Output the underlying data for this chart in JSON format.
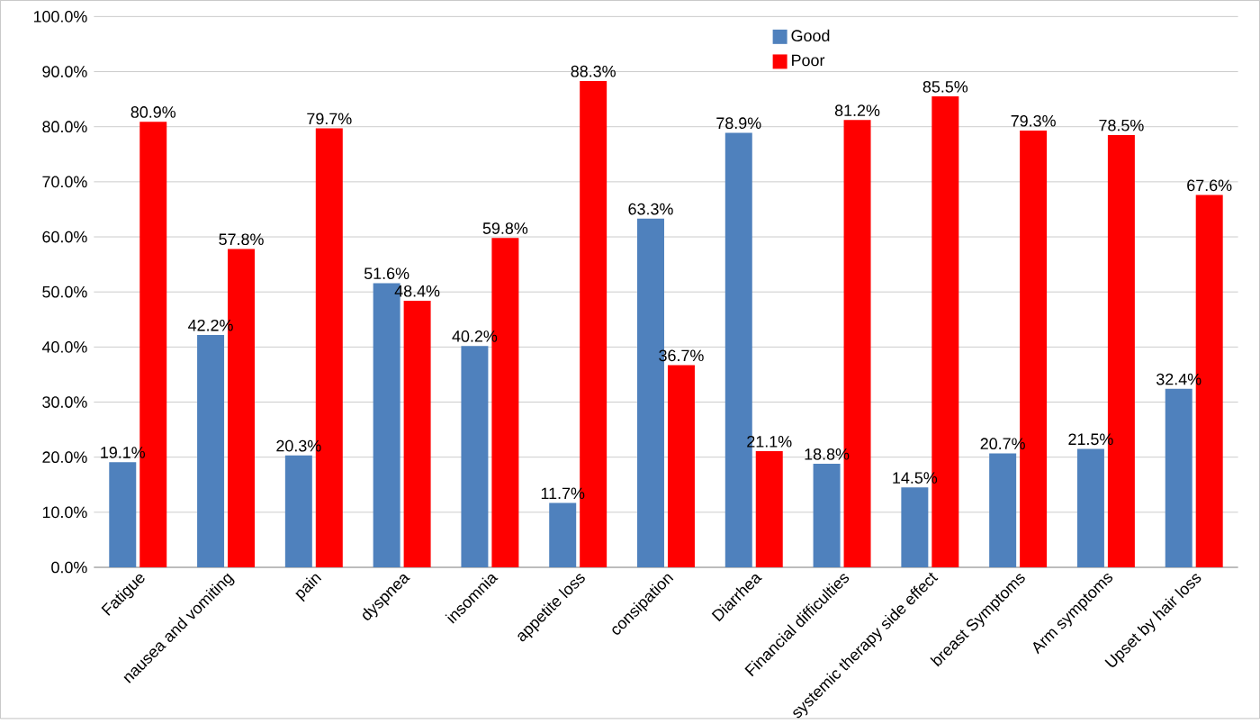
{
  "chart_data": {
    "type": "bar",
    "categories": [
      "Fatigue",
      "nausea and vomiting",
      "pain",
      "dyspnea",
      "insomnia",
      "appetite loss",
      "consipation",
      "Diarrhea",
      "Financial difficulties",
      "systemic therapy side effect",
      "breast Symptoms",
      "Arm symptoms",
      "Upset by hair loss"
    ],
    "series": [
      {
        "name": "Good",
        "color": "#4f81bd",
        "values": [
          19.1,
          42.2,
          20.3,
          51.6,
          40.2,
          11.7,
          63.3,
          78.9,
          18.8,
          14.5,
          20.7,
          21.5,
          32.4
        ],
        "value_labels": [
          "19.1%",
          "42.2%",
          "20.3%",
          "51.6%",
          "40.2%",
          "11.7%",
          "63.3%",
          "78.9%",
          "18.8%",
          "14.5%",
          "20.7%",
          "21.5%",
          "32.4%"
        ]
      },
      {
        "name": "Poor",
        "color": "#ff0000",
        "values": [
          80.9,
          57.8,
          79.7,
          48.4,
          59.8,
          88.3,
          36.7,
          21.1,
          81.2,
          85.5,
          79.3,
          78.5,
          67.6
        ],
        "value_labels": [
          "80.9%",
          "57.8%",
          "79.7%",
          "48.4%",
          "59.8%",
          "88.3%",
          "36.7%",
          "21.1%",
          "81.2%",
          "85.5%",
          "79.3%",
          "78.5%",
          "67.6%"
        ]
      }
    ],
    "ylim": [
      0,
      100
    ],
    "yticks": [
      {
        "value": 0,
        "label": "0.0%"
      },
      {
        "value": 10,
        "label": "10.0%"
      },
      {
        "value": 20,
        "label": "20.0%"
      },
      {
        "value": 30,
        "label": "30.0%"
      },
      {
        "value": 40,
        "label": "40.0%"
      },
      {
        "value": 50,
        "label": "50.0%"
      },
      {
        "value": 60,
        "label": "60.0%"
      },
      {
        "value": 70,
        "label": "70.0%"
      },
      {
        "value": 80,
        "label": "80.0%"
      },
      {
        "value": 90,
        "label": "90.0%"
      },
      {
        "value": 100,
        "label": "100.0%"
      }
    ],
    "grid": "y",
    "legend": "top"
  }
}
